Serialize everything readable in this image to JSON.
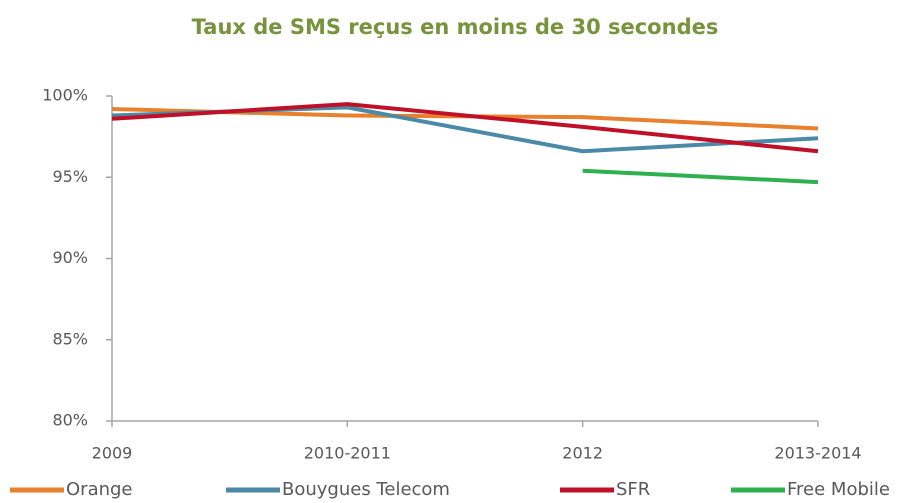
{
  "chart_data": {
    "type": "line",
    "title": "Taux de SMS reçus en moins de 30 secondes",
    "categories": [
      "2009",
      "2010-2011",
      "2012",
      "2013-2014"
    ],
    "series": [
      {
        "name": "Orange",
        "color": "#e8802e",
        "values": [
          99.2,
          98.8,
          98.7,
          98.0
        ]
      },
      {
        "name": "Bouygues Telecom",
        "color": "#4a8aa6",
        "values": [
          98.8,
          99.3,
          96.6,
          97.4
        ]
      },
      {
        "name": "SFR",
        "color": "#c01027",
        "values": [
          98.6,
          99.5,
          98.1,
          96.6
        ]
      },
      {
        "name": "Free Mobile",
        "color": "#2eb04f",
        "values": [
          null,
          null,
          95.4,
          94.7
        ]
      }
    ],
    "ylim": [
      80,
      100
    ],
    "yticks": [
      {
        "value": 80,
        "label": "80%"
      },
      {
        "value": 85,
        "label": "85%"
      },
      {
        "value": 90,
        "label": "90%"
      },
      {
        "value": 95,
        "label": "95%"
      },
      {
        "value": 100,
        "label": "100%"
      }
    ],
    "grid": false,
    "legend": "bottom"
  }
}
